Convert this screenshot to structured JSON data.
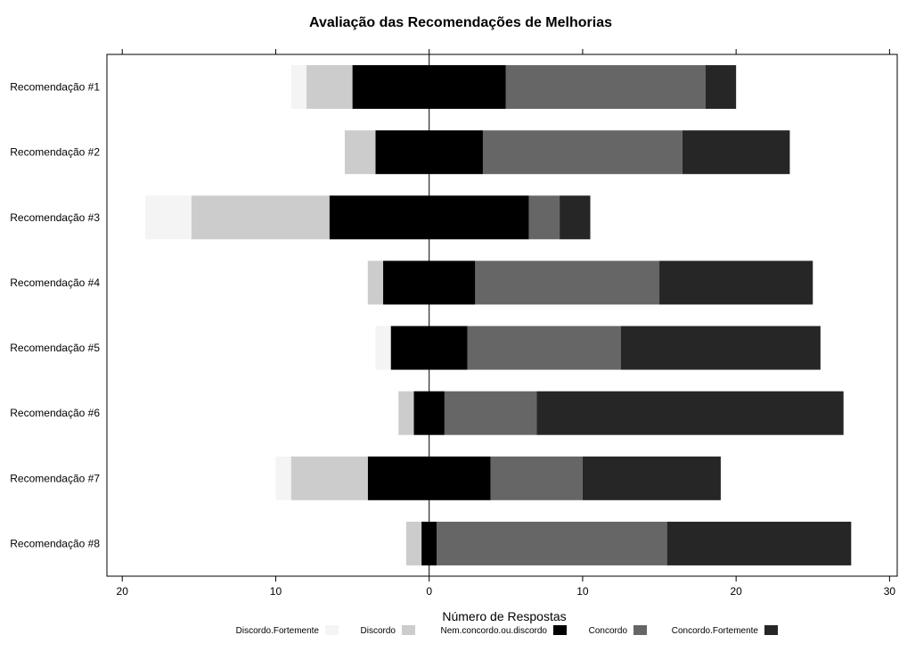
{
  "chart_data": {
    "type": "bar",
    "subtype": "diverging-stacked-horizontal",
    "title": "Avaliação das Recomendações de Melhorias",
    "xlabel": "Número de Respostas",
    "ylabel": "",
    "xlim": [
      -21,
      30.5
    ],
    "x_tick_values": [
      -20,
      -10,
      0,
      10,
      20,
      30
    ],
    "x_tick_labels": [
      "20",
      "10",
      "0",
      "10",
      "20",
      "30"
    ],
    "categories": [
      "Recomendação #1",
      "Recomendação #2",
      "Recomendação #3",
      "Recomendação #4",
      "Recomendação #5",
      "Recomendação #6",
      "Recomendação #7",
      "Recomendação #8"
    ],
    "series": [
      {
        "name": "Discordo.Fortemente",
        "color": "#f4f4f4",
        "values": [
          1,
          0,
          3,
          0,
          1,
          0,
          1,
          0
        ]
      },
      {
        "name": "Discordo",
        "color": "#cccccc",
        "values": [
          3,
          2,
          9,
          1,
          0,
          1,
          5,
          1
        ]
      },
      {
        "name": "Nem.concordo.ou.discordo",
        "color": "#000000",
        "values": [
          10,
          7,
          13,
          6,
          5,
          2,
          8,
          1
        ]
      },
      {
        "name": "Concordo",
        "color": "#666666",
        "values": [
          13,
          13,
          2,
          12,
          10,
          6,
          6,
          15
        ]
      },
      {
        "name": "Concordo.Fortemente",
        "color": "#262626",
        "values": [
          2,
          7,
          2,
          10,
          13,
          20,
          9,
          12
        ]
      }
    ],
    "legend_position": "bottom",
    "grid": false
  }
}
